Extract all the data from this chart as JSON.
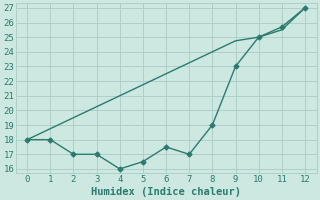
{
  "xlabel": "Humidex (Indice chaleur)",
  "x": [
    0,
    1,
    2,
    3,
    4,
    5,
    6,
    7,
    8,
    9,
    10,
    11,
    12
  ],
  "line1_y": [
    18.0,
    18.75,
    19.5,
    20.25,
    21.0,
    21.75,
    22.5,
    23.25,
    24.0,
    24.75,
    25.0,
    25.5,
    27.0
  ],
  "line2_y": [
    18.0,
    18.0,
    17.0,
    17.0,
    16.0,
    16.5,
    17.5,
    17.0,
    19.0,
    23.0,
    25.0,
    25.7,
    27.0
  ],
  "line_color": "#2d7a70",
  "background_color": "#cce8e0",
  "grid_color": "#aaccC4",
  "ylim_min": 15.7,
  "ylim_max": 27.3,
  "xlim_min": -0.5,
  "xlim_max": 12.5,
  "yticks": [
    16,
    17,
    18,
    19,
    20,
    21,
    22,
    23,
    24,
    25,
    26,
    27
  ],
  "xticks": [
    0,
    1,
    2,
    3,
    4,
    5,
    6,
    7,
    8,
    9,
    10,
    11,
    12
  ],
  "marker": "D",
  "markersize": 2.5,
  "linewidth": 1.0,
  "xlabel_fontsize": 7.5,
  "tick_fontsize": 6.5
}
